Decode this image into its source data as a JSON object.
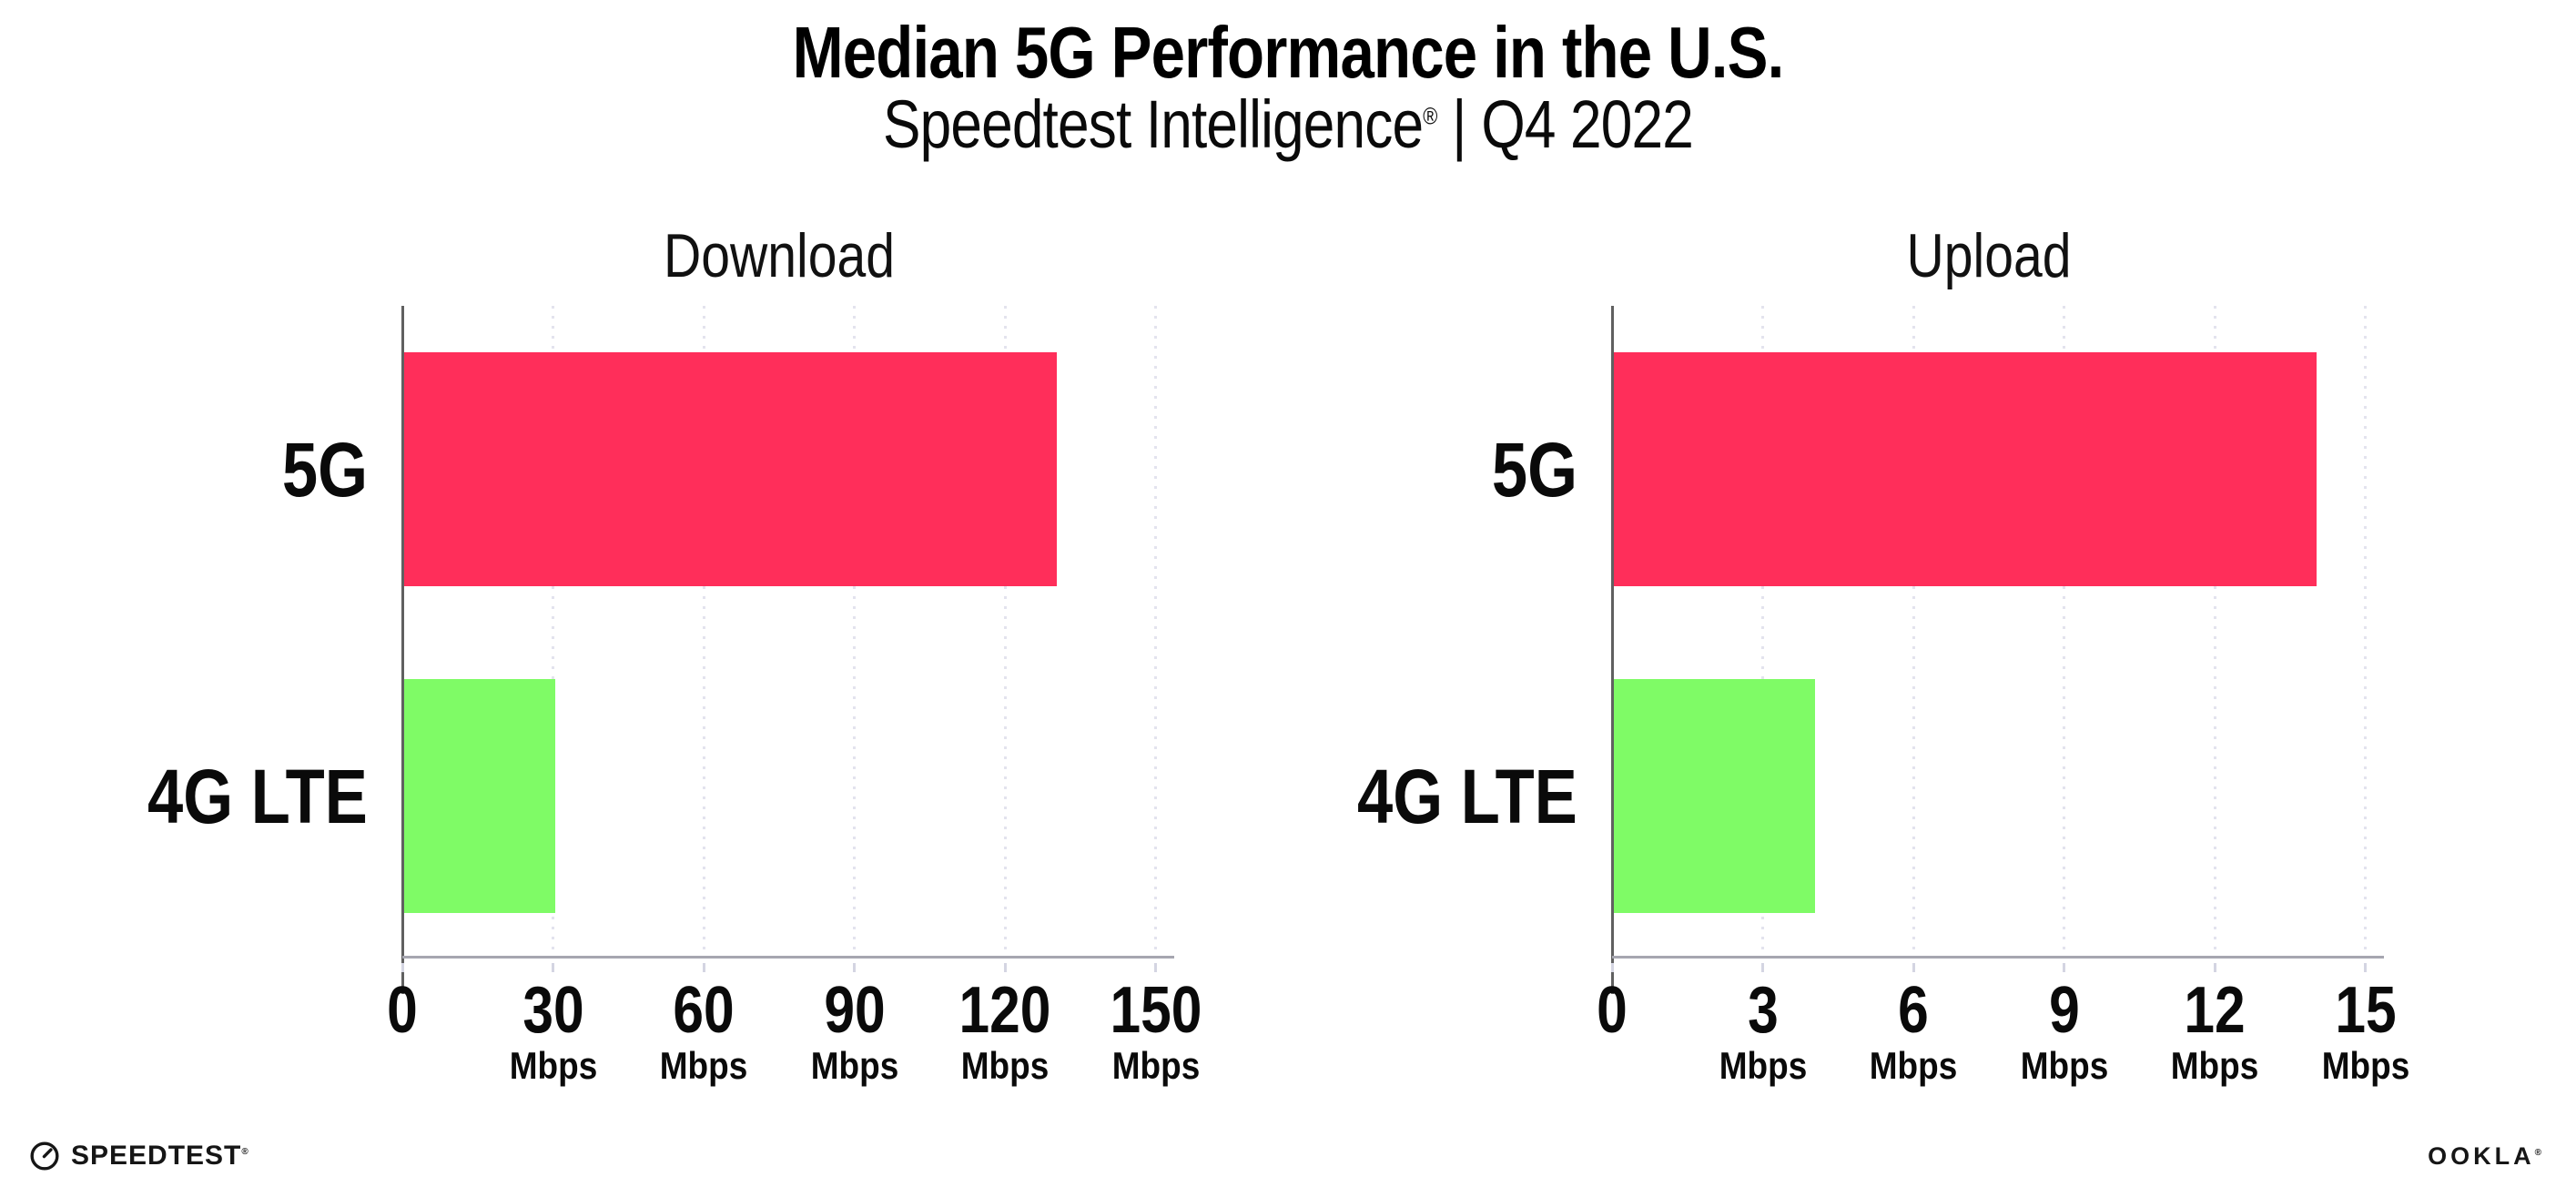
{
  "header": {
    "title": "Median 5G Performance in the U.S.",
    "subtitle_brand": "Speedtest Intelligence",
    "subtitle_reg": "®",
    "subtitle_sep": "|",
    "subtitle_period": "Q4 2022"
  },
  "colors": {
    "bar_5g": "#FF2E5A",
    "bar_4g_lte": "#7FFB66",
    "grid_dot": "#E3E3EE",
    "y_axis": "#606060",
    "x_axis": "#A6A6B0",
    "text": "#0D0D0D"
  },
  "chart_data": [
    {
      "type": "bar",
      "orientation": "horizontal",
      "title": "Download",
      "categories": [
        "5G",
        "4G LTE"
      ],
      "values": [
        130,
        30
      ],
      "unit": "Mbps",
      "xlim": [
        0,
        150
      ],
      "xticks": [
        0,
        30,
        60,
        90,
        120,
        150
      ],
      "bar_colors": [
        "#FF2E5A",
        "#7FFB66"
      ],
      "grid": "vertical-dotted",
      "legend": "none",
      "value_labels": false
    },
    {
      "type": "bar",
      "orientation": "horizontal",
      "title": "Upload",
      "categories": [
        "5G",
        "4G LTE"
      ],
      "values": [
        14,
        4
      ],
      "unit": "Mbps",
      "xlim": [
        0,
        15
      ],
      "xticks": [
        0,
        3,
        6,
        9,
        12,
        15
      ],
      "bar_colors": [
        "#FF2E5A",
        "#7FFB66"
      ],
      "grid": "vertical-dotted",
      "legend": "none",
      "value_labels": false
    }
  ],
  "footer": {
    "speedtest_gauge_icon": "speedtest-gauge-icon",
    "speedtest_wordmark": "SPEEDTEST",
    "speedtest_reg": "®",
    "ookla_wordmark": "OOKLA",
    "ookla_reg": "®"
  }
}
